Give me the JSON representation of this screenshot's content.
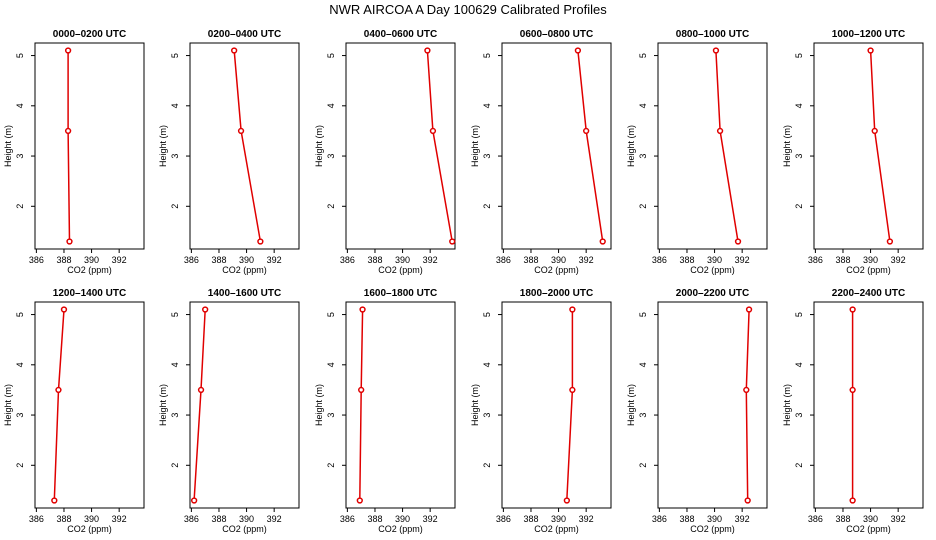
{
  "chart_data": {
    "type": "line",
    "title": "NWR AIRCOA A  Day 100629  Calibrated Profiles",
    "xlabel": "CO2 (ppm)",
    "ylabel": "Height (m)",
    "xlim": [
      385.9,
      393.8
    ],
    "ylim": [
      1.15,
      5.25
    ],
    "xticks": [
      386,
      388,
      390,
      392
    ],
    "yticks": [
      2,
      3,
      4,
      5
    ],
    "heights": [
      5.1,
      3.5,
      1.3
    ],
    "color": "#e00000",
    "panels": [
      {
        "label": "0000–0200 UTC",
        "co2": [
          388.3,
          388.3,
          388.4
        ]
      },
      {
        "label": "0200–0400 UTC",
        "co2": [
          389.1,
          389.6,
          391.0
        ]
      },
      {
        "label": "0400–0600 UTC",
        "co2": [
          391.8,
          392.2,
          393.6
        ]
      },
      {
        "label": "0600–0800 UTC",
        "co2": [
          391.4,
          392.0,
          393.2
        ]
      },
      {
        "label": "0800–1000 UTC",
        "co2": [
          390.1,
          390.4,
          391.7
        ]
      },
      {
        "label": "1000–1200 UTC",
        "co2": [
          390.0,
          390.3,
          391.4
        ]
      },
      {
        "label": "1200–1400 UTC",
        "co2": [
          388.0,
          387.6,
          387.3
        ]
      },
      {
        "label": "1400–1600 UTC",
        "co2": [
          387.0,
          386.7,
          386.2
        ]
      },
      {
        "label": "1600–1800 UTC",
        "co2": [
          387.1,
          387.0,
          386.9
        ]
      },
      {
        "label": "1800–2000 UTC",
        "co2": [
          391.0,
          391.0,
          390.6
        ]
      },
      {
        "label": "2000–2200 UTC",
        "co2": [
          392.5,
          392.3,
          392.4
        ]
      },
      {
        "label": "2200–2400 UTC",
        "co2": [
          388.7,
          388.7,
          388.7
        ]
      }
    ]
  }
}
